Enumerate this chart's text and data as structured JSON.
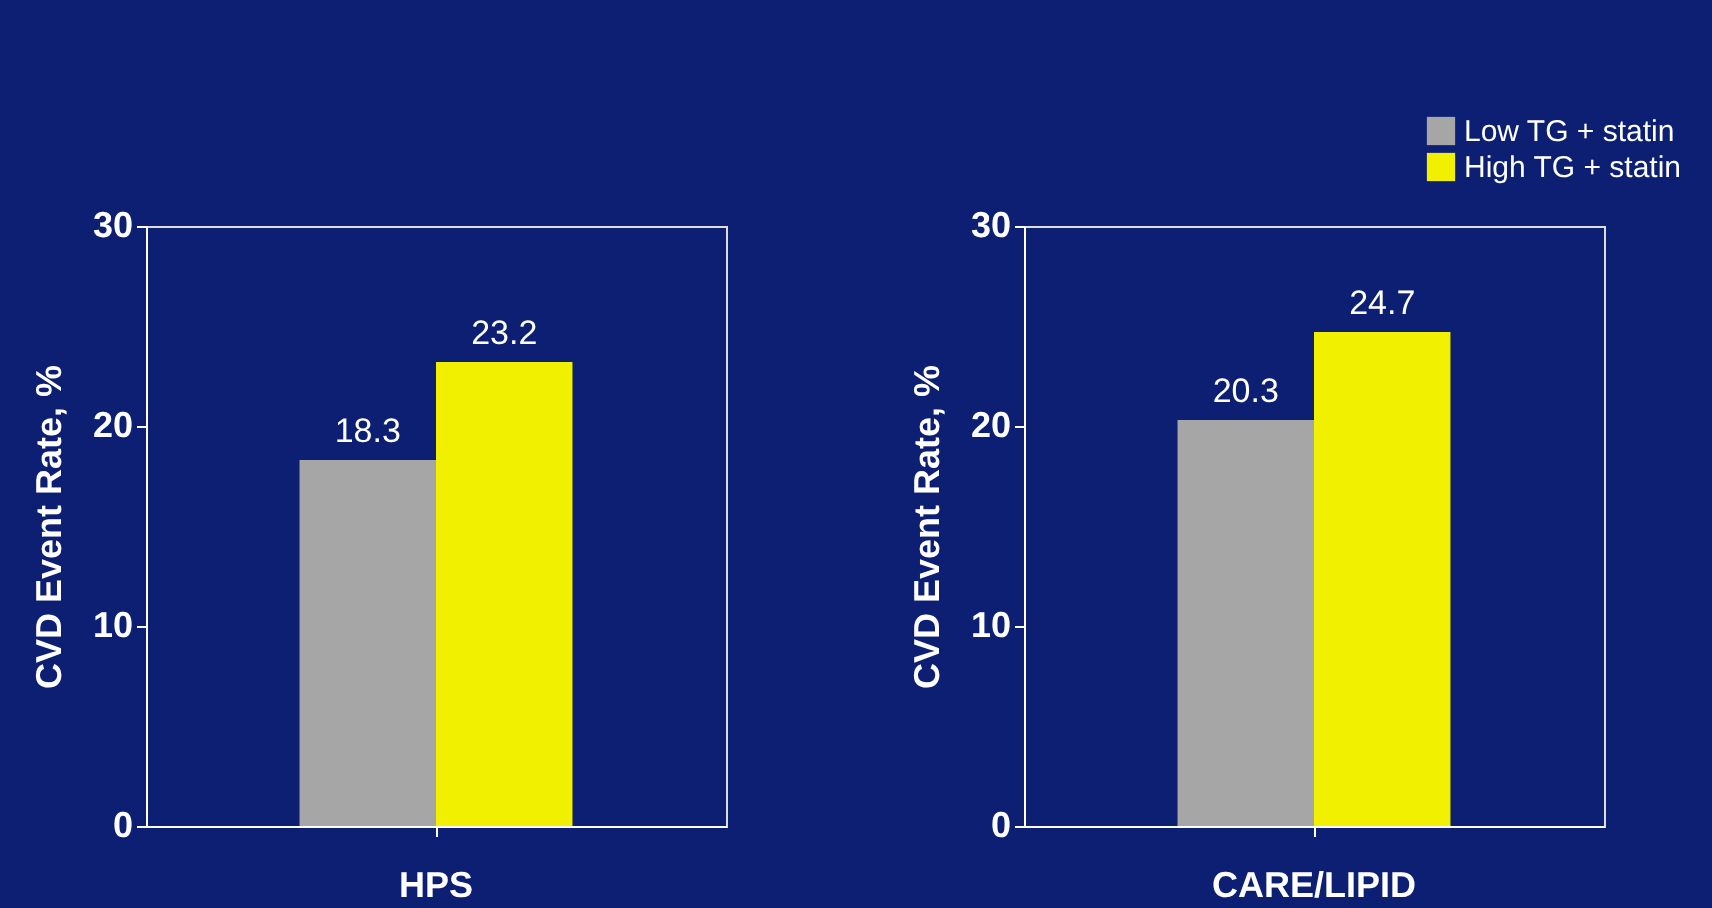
{
  "chart_data": [
    {
      "type": "bar",
      "categories": [
        "HPS"
      ],
      "ylabel": "CVD Event Rate, %",
      "ylim": [
        0,
        30
      ],
      "yticks": [
        0,
        10,
        20,
        30
      ],
      "grid": false,
      "legend": "top right",
      "data_labels": true,
      "series": [
        {
          "name": "Low TG + statin",
          "color": "#a6a6a6",
          "values": [
            18.3
          ]
        },
        {
          "name": "High TG + statin",
          "color": "#f0f000",
          "values": [
            23.2
          ]
        }
      ]
    },
    {
      "type": "bar",
      "categories": [
        "CARE/LIPID"
      ],
      "ylabel": "CVD Event Rate, %",
      "ylim": [
        0,
        30
      ],
      "yticks": [
        0,
        10,
        20,
        30
      ],
      "grid": false,
      "legend": "top right",
      "data_labels": true,
      "series": [
        {
          "name": "Low TG + statin",
          "color": "#a6a6a6",
          "values": [
            20.3
          ]
        },
        {
          "name": "High TG + statin",
          "color": "#f0f000",
          "values": [
            24.7
          ]
        }
      ]
    }
  ]
}
